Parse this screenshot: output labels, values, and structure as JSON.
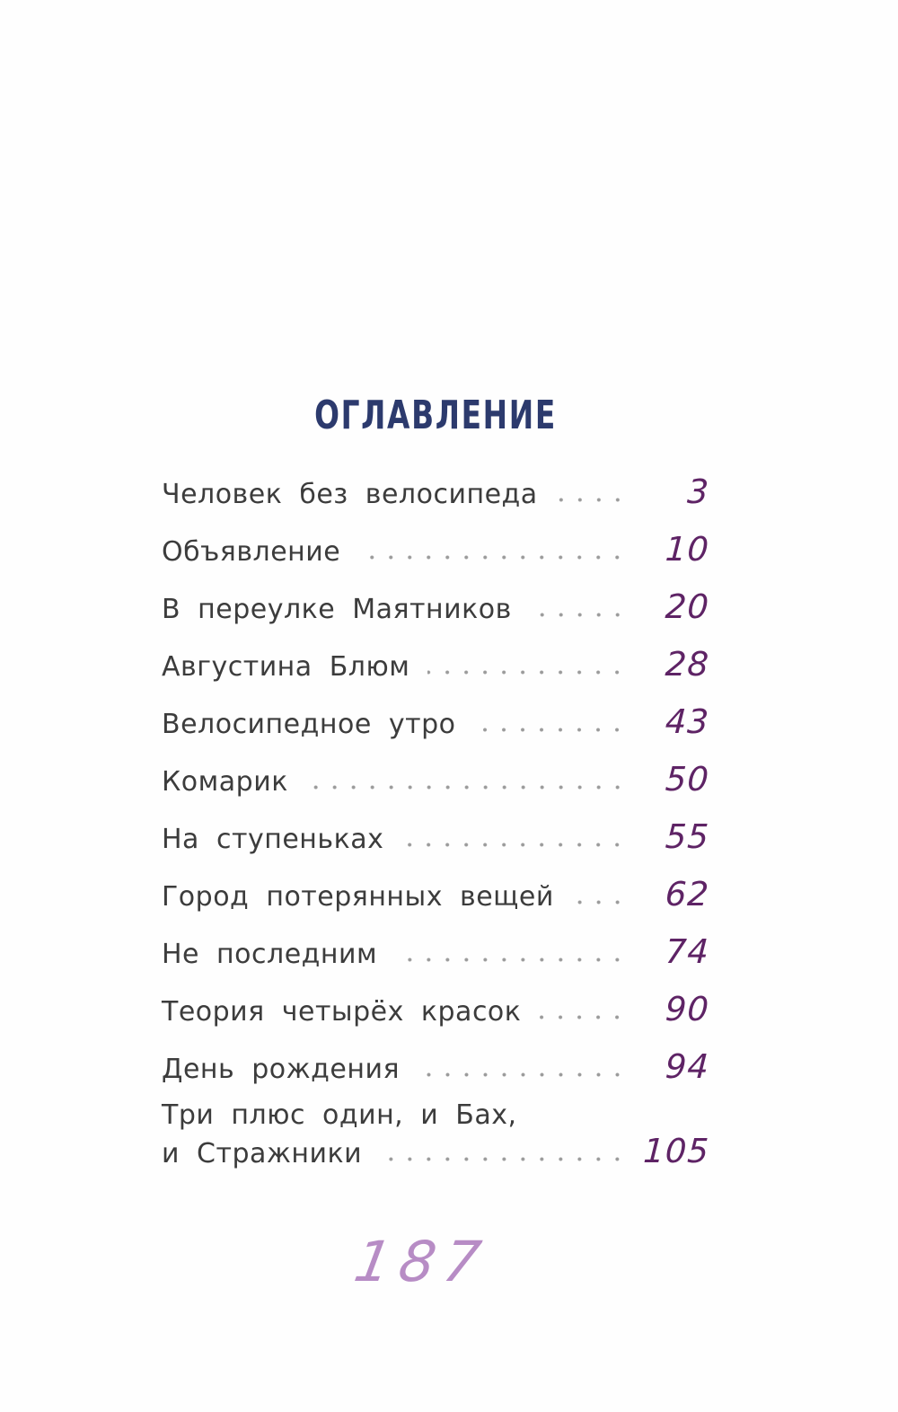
{
  "page": {
    "title": "ОГЛАВЛЕНИЕ",
    "folio": "187",
    "colors": {
      "title": "#2c3a6d",
      "entry_text": "#3c3c3c",
      "page_number": "#5e2365",
      "dot_leader": "#9b9b9b",
      "folio": "#b78cc5",
      "background": "#fefefe"
    },
    "toc": {
      "entries": [
        {
          "lines": [
            "Человек без велосипеда"
          ],
          "page": "3"
        },
        {
          "lines": [
            "Объявление"
          ],
          "page": "10"
        },
        {
          "lines": [
            "В переулке Маятников"
          ],
          "page": "20"
        },
        {
          "lines": [
            "Августина Блюм"
          ],
          "page": "28"
        },
        {
          "lines": [
            "Велосипедное утро"
          ],
          "page": "43"
        },
        {
          "lines": [
            "Комарик"
          ],
          "page": "50"
        },
        {
          "lines": [
            "На ступеньках"
          ],
          "page": "55"
        },
        {
          "lines": [
            "Город потерянных вещей"
          ],
          "page": "62"
        },
        {
          "lines": [
            "Не последним"
          ],
          "page": "74"
        },
        {
          "lines": [
            "Теория четырёх красок"
          ],
          "page": "90"
        },
        {
          "lines": [
            "День рождения"
          ],
          "page": "94"
        },
        {
          "lines": [
            "Три плюс один, и Бах,",
            "и Стражники"
          ],
          "page": "105"
        }
      ]
    }
  }
}
